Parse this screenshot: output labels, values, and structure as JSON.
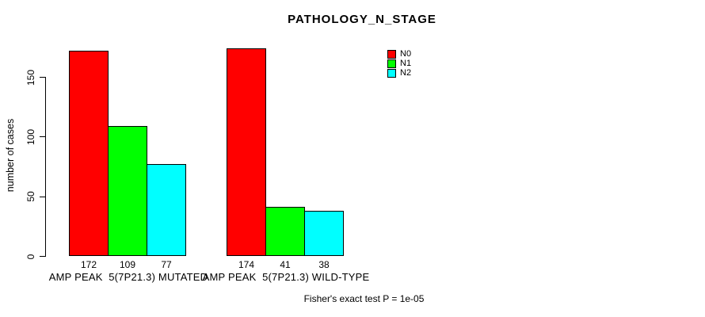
{
  "page": {
    "background_color": "#ffffff",
    "text_color": "#000000"
  },
  "chart_data": {
    "type": "bar",
    "grouped": true,
    "title": "PATHOLOGY_N_STAGE",
    "xlabel": "",
    "ylabel": "number of cases",
    "categories": [
      "AMP PEAK  5(7P21.3) MUTATED",
      "AMP PEAK  5(7P21.3) WILD-TYPE"
    ],
    "series": [
      {
        "name": "N0",
        "color": "#ff0000",
        "values": [
          172,
          174
        ]
      },
      {
        "name": "N1",
        "color": "#00ff00",
        "values": [
          109,
          41
        ]
      },
      {
        "name": "N2",
        "color": "#00ffff",
        "values": [
          77,
          38
        ]
      }
    ],
    "bar_value_labels": [
      [
        "172",
        "109",
        "77"
      ],
      [
        "174",
        "41",
        "38"
      ]
    ],
    "yticks": [
      0,
      50,
      100,
      150
    ],
    "ylim": [
      0,
      180
    ],
    "grid": false,
    "legend_position": "top-right",
    "legend_entries": [
      "N0",
      "N1",
      "N2"
    ],
    "bar_border_color": "#000000",
    "annotation": "Fisher's exact test P = 1e-05"
  }
}
